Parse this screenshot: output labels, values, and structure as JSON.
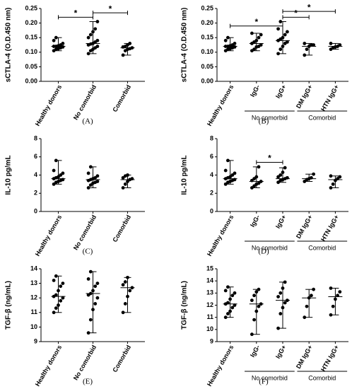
{
  "chart_data": [
    {
      "type": "dotplot",
      "panel": "(A)",
      "y_label": "sCTLA-4 (O.D.450 nm)",
      "categories": [
        "Healthy donors",
        "No comorbid",
        "Comorbid"
      ],
      "values": [
        [
          0.105,
          0.11,
          0.112,
          0.115,
          0.118,
          0.12,
          0.12,
          0.122,
          0.125,
          0.13,
          0.14,
          0.15
        ],
        [
          0.095,
          0.105,
          0.11,
          0.115,
          0.12,
          0.125,
          0.128,
          0.13,
          0.135,
          0.14,
          0.15,
          0.16,
          0.17,
          0.18,
          0.205
        ],
        [
          0.09,
          0.105,
          0.11,
          0.112,
          0.115,
          0.118,
          0.12,
          0.125,
          0.13
        ]
      ],
      "medians": [
        0.12,
        0.13,
        0.115
      ],
      "whiskers": [
        [
          0.105,
          0.15
        ],
        [
          0.095,
          0.205
        ],
        [
          0.09,
          0.13
        ]
      ],
      "ylim": [
        0,
        0.25
      ],
      "yticks": [
        {
          "value": 0,
          "label": "0.00"
        },
        {
          "value": 0.05,
          "label": "0.05"
        },
        {
          "value": 0.1,
          "label": "0.10"
        },
        {
          "value": 0.15,
          "label": "0.15"
        },
        {
          "value": 0.2,
          "label": "0.20"
        },
        {
          "value": 0.25,
          "label": "0.25"
        }
      ],
      "annotations": [
        {
          "text": "*",
          "from": 0,
          "to": 1,
          "y": 0.22
        },
        {
          "text": "*",
          "from": 1,
          "to": 2,
          "y": 0.235
        }
      ],
      "color": "#000000"
    },
    {
      "type": "dotplot",
      "panel": "(B)",
      "y_label": "sCTLA-4 (O.D.450 nm)",
      "categories": [
        "Healthy donors",
        "IgG-",
        "IgG+",
        "DM IgG+",
        "HTN IgG+"
      ],
      "groups": [
        {
          "label": "No comorbid",
          "from": 1,
          "to": 2
        },
        {
          "label": "Comorbid",
          "from": 3,
          "to": 4
        }
      ],
      "values": [
        [
          0.105,
          0.11,
          0.112,
          0.115,
          0.118,
          0.12,
          0.12,
          0.122,
          0.125,
          0.13,
          0.14,
          0.15
        ],
        [
          0.105,
          0.11,
          0.118,
          0.12,
          0.125,
          0.13,
          0.135,
          0.14,
          0.15,
          0.16,
          0.165
        ],
        [
          0.095,
          0.11,
          0.12,
          0.13,
          0.135,
          0.14,
          0.145,
          0.15,
          0.16,
          0.17,
          0.18,
          0.205
        ],
        [
          0.09,
          0.11,
          0.12,
          0.125,
          0.125,
          0.13
        ],
        [
          0.11,
          0.115,
          0.118,
          0.12,
          0.125,
          0.13
        ]
      ],
      "medians": [
        0.12,
        0.13,
        0.14,
        0.12,
        0.12
      ],
      "whiskers": [
        [
          0.105,
          0.15
        ],
        [
          0.105,
          0.165
        ],
        [
          0.095,
          0.205
        ],
        [
          0.09,
          0.13
        ],
        [
          0.11,
          0.13
        ]
      ],
      "ylim": [
        0,
        0.25
      ],
      "yticks": [
        {
          "value": 0,
          "label": "0.00"
        },
        {
          "value": 0.05,
          "label": "0.05"
        },
        {
          "value": 0.1,
          "label": "0.10"
        },
        {
          "value": 0.15,
          "label": "0.15"
        },
        {
          "value": 0.2,
          "label": "0.20"
        },
        {
          "value": 0.25,
          "label": "0.25"
        }
      ],
      "annotations": [
        {
          "text": "*",
          "from": 0,
          "to": 2,
          "y": 0.19
        },
        {
          "text": "*",
          "from": 2,
          "to": 3,
          "y": 0.22
        },
        {
          "text": "*",
          "from": 2,
          "to": 4,
          "y": 0.24
        }
      ],
      "color": "#000000"
    },
    {
      "type": "dotplot",
      "panel": "(C)",
      "y_label": "IL-10 pg/mL",
      "categories": [
        "Healthy donors",
        "No comorbid",
        "Comorbid"
      ],
      "values": [
        [
          3.0,
          3.2,
          3.3,
          3.4,
          3.5,
          3.6,
          3.7,
          3.8,
          4.0,
          4.2,
          4.5,
          5.6
        ],
        [
          2.6,
          2.9,
          3.1,
          3.2,
          3.3,
          3.4,
          3.5,
          3.6,
          3.7,
          3.9,
          4.2,
          4.9
        ],
        [
          2.6,
          3.0,
          3.3,
          3.5,
          3.6,
          3.7,
          3.9,
          4.0
        ]
      ],
      "medians": [
        3.6,
        3.5,
        3.5
      ],
      "whiskers": [
        [
          3.0,
          5.6
        ],
        [
          2.6,
          4.9
        ],
        [
          2.6,
          4.0
        ]
      ],
      "ylim": [
        0,
        8
      ],
      "yticks": [
        0,
        2,
        4,
        6,
        8
      ],
      "color": "#000000"
    },
    {
      "type": "dotplot",
      "panel": "(D)",
      "y_label": "IL-10 pg/mL",
      "categories": [
        "Healthy donors",
        "IgG-",
        "IgG+",
        "DM IgG+",
        "HTN IgG+"
      ],
      "groups": [
        {
          "label": "No comorbid",
          "from": 1,
          "to": 2
        },
        {
          "label": "Comorbid",
          "from": 3,
          "to": 4
        }
      ],
      "values": [
        [
          3.0,
          3.2,
          3.3,
          3.4,
          3.5,
          3.6,
          3.7,
          3.8,
          4.0,
          4.2,
          4.5,
          5.6
        ],
        [
          2.6,
          2.8,
          3.0,
          3.1,
          3.3,
          3.4,
          3.6,
          3.8,
          4.9
        ],
        [
          3.2,
          3.4,
          3.5,
          3.6,
          3.7,
          3.8,
          4.0,
          4.3,
          4.8
        ],
        [
          3.3,
          3.5,
          3.6,
          3.7,
          4.1
        ],
        [
          2.6,
          3.0,
          3.4,
          3.6,
          3.8,
          3.9
        ]
      ],
      "medians": [
        3.6,
        3.3,
        3.6,
        3.6,
        3.5
      ],
      "whiskers": [
        [
          3.0,
          5.6
        ],
        [
          2.6,
          4.9
        ],
        [
          3.2,
          4.8
        ],
        [
          3.3,
          4.1
        ],
        [
          2.6,
          3.9
        ]
      ],
      "ylim": [
        0,
        8
      ],
      "yticks": [
        0,
        2,
        4,
        6,
        8
      ],
      "annotations": [
        {
          "text": "*",
          "from": 1,
          "to": 2,
          "y": 5.4
        }
      ],
      "color": "#000000"
    },
    {
      "type": "dotplot",
      "panel": "(E)",
      "y_label": "TGF-β (ng/mL)",
      "categories": [
        "Healthy donors",
        "No comorbid",
        "Comorbid"
      ],
      "values": [
        [
          11.0,
          11.3,
          11.5,
          11.8,
          12.0,
          12.1,
          12.2,
          12.5,
          12.8,
          13.0,
          13.2,
          13.5
        ],
        [
          9.6,
          10.5,
          11.2,
          11.6,
          12.0,
          12.2,
          12.3,
          12.5,
          12.8,
          13.0,
          13.3,
          13.8
        ],
        [
          11.0,
          11.6,
          12.1,
          12.5,
          12.7,
          12.9,
          13.1,
          13.4
        ]
      ],
      "medians": [
        12.1,
        12.3,
        12.7
      ],
      "whiskers": [
        [
          11.0,
          13.5
        ],
        [
          9.6,
          13.8
        ],
        [
          11.0,
          13.4
        ]
      ],
      "ylim": [
        9,
        14
      ],
      "yticks": [
        9,
        10,
        11,
        12,
        13,
        14
      ],
      "color": "#000000"
    },
    {
      "type": "dotplot",
      "panel": "(F)",
      "y_label": "TGF-β (ng/mL)",
      "categories": [
        "Healthy donors",
        "IgG-",
        "IgG+",
        "DM IgG+",
        "HTN IgG+"
      ],
      "groups": [
        {
          "label": "No comorbid",
          "from": 1,
          "to": 2
        },
        {
          "label": "Comorbid",
          "from": 3,
          "to": 4
        }
      ],
      "values": [
        [
          11.0,
          11.3,
          11.5,
          11.8,
          12.0,
          12.1,
          12.2,
          12.5,
          12.8,
          13.0,
          13.2,
          13.5
        ],
        [
          9.6,
          10.8,
          11.5,
          11.9,
          12.1,
          12.4,
          12.8,
          13.1,
          13.3
        ],
        [
          10.1,
          11.3,
          11.8,
          12.2,
          12.4,
          12.7,
          13.0,
          13.4,
          13.9
        ],
        [
          11.0,
          11.9,
          12.6,
          12.8,
          13.3
        ],
        [
          11.2,
          11.9,
          12.5,
          12.8,
          13.1,
          13.4
        ]
      ],
      "medians": [
        12.1,
        12.1,
        12.4,
        12.6,
        12.7
      ],
      "whiskers": [
        [
          11.0,
          13.5
        ],
        [
          9.6,
          13.3
        ],
        [
          10.1,
          13.9
        ],
        [
          11.0,
          13.3
        ],
        [
          11.2,
          13.4
        ]
      ],
      "ylim": [
        9,
        15
      ],
      "yticks": [
        9,
        10,
        11,
        12,
        13,
        14,
        15
      ],
      "color": "#000000"
    }
  ]
}
